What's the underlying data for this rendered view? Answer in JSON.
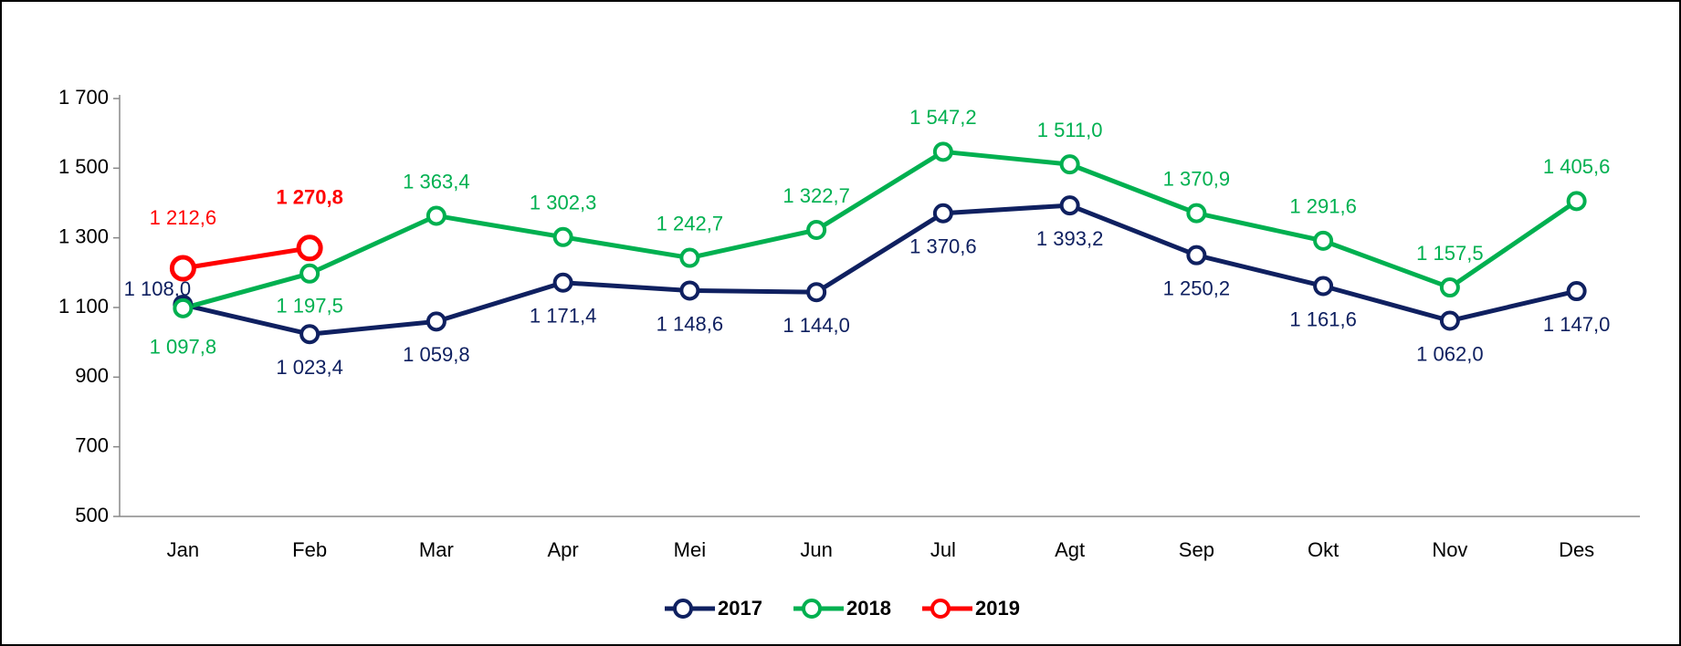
{
  "chart_data": {
    "type": "line",
    "categories": [
      "Jan",
      "Feb",
      "Mar",
      "Apr",
      "Mei",
      "Jun",
      "Jul",
      "Agt",
      "Sep",
      "Okt",
      "Nov",
      "Des"
    ],
    "series": [
      {
        "name": "2017",
        "color": "#0f2060",
        "values": [
          1108.0,
          1023.4,
          1059.8,
          1171.4,
          1148.6,
          1144.0,
          1370.6,
          1393.2,
          1250.2,
          1161.6,
          1062.0,
          1147.0
        ],
        "value_labels": [
          "1 108,0",
          "1 023,4",
          "1 059,8",
          "1 171,4",
          "1 148,6",
          "1 144,0",
          "1 370,6",
          "1 393,2",
          "1 250,2",
          "1 161,6",
          "1 062,0",
          "1 147,0"
        ]
      },
      {
        "name": "2018",
        "color": "#00b050",
        "values": [
          1097.8,
          1197.5,
          1363.4,
          1302.3,
          1242.7,
          1322.7,
          1547.2,
          1511.0,
          1370.9,
          1291.6,
          1157.5,
          1405.6
        ],
        "value_labels": [
          "1 097,8",
          "1 197,5",
          "1 363,4",
          "1 302,3",
          "1 242,7",
          "1 322,7",
          "1 547,2",
          "1 511,0",
          "1 370,9",
          "1 291,6",
          "1 157,5",
          "1 405,6"
        ]
      },
      {
        "name": "2019",
        "color": "#ff0000",
        "values": [
          1212.6,
          1270.8,
          null,
          null,
          null,
          null,
          null,
          null,
          null,
          null,
          null,
          null
        ],
        "value_labels": [
          "1 212,6",
          "1 270,8",
          null,
          null,
          null,
          null,
          null,
          null,
          null,
          null,
          null,
          null
        ]
      }
    ],
    "ylim": [
      500,
      1700
    ],
    "yticks": [
      500,
      700,
      900,
      {
        "value": 1100,
        "label": "1 100"
      },
      {
        "value": 1300,
        "label": "1 300"
      },
      {
        "value": 1500,
        "label": "1 500"
      },
      {
        "value": 1700,
        "label": "1 700"
      }
    ],
    "legend": "bottom"
  }
}
